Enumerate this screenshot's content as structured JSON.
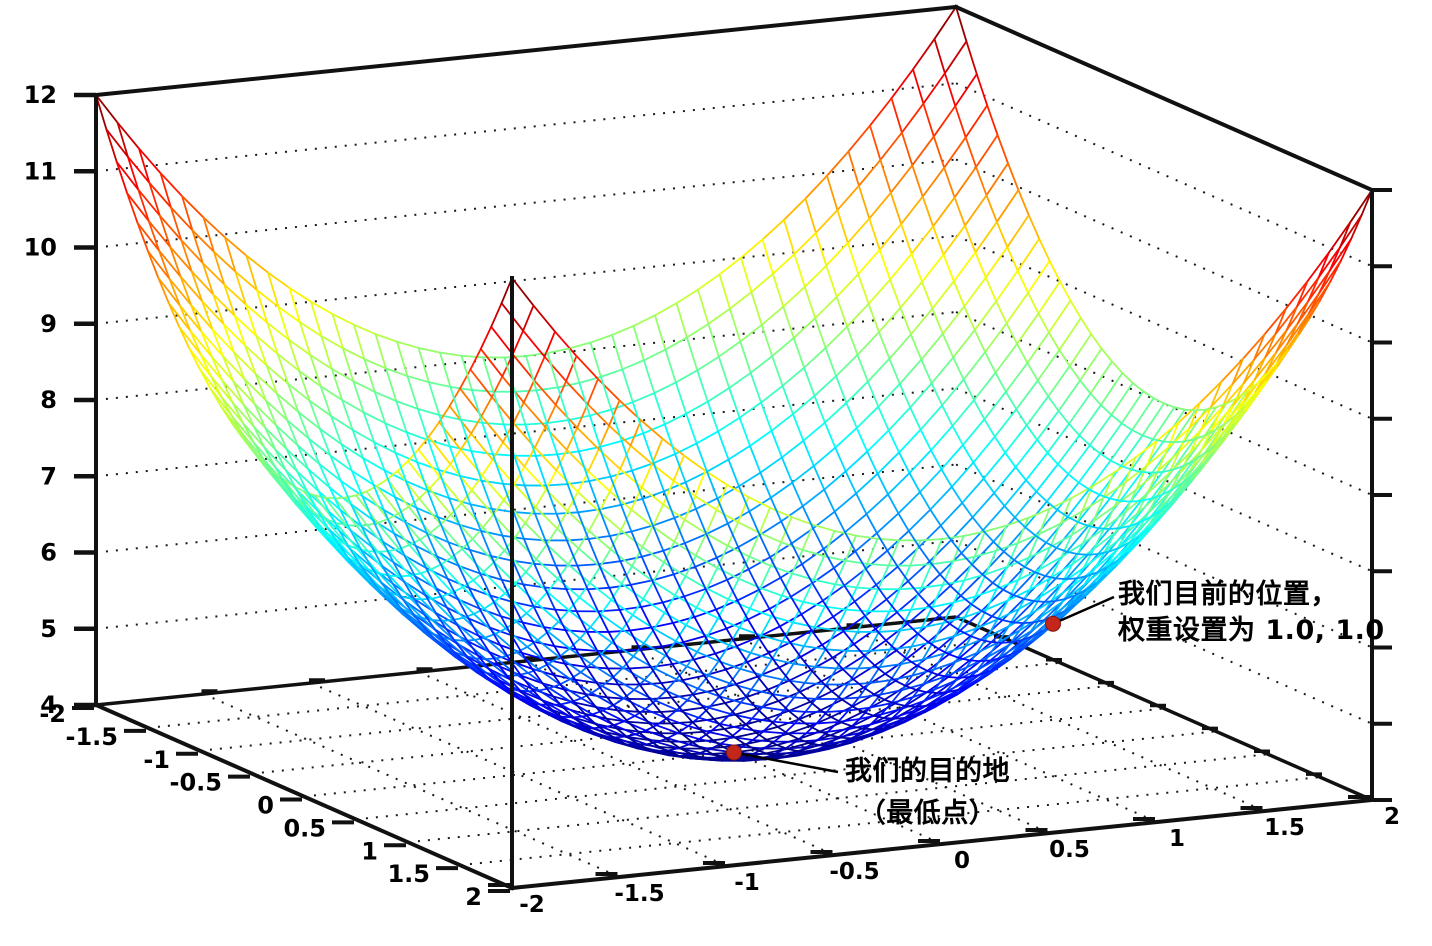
{
  "chart_data": {
    "type": "surface",
    "title": "",
    "function": "z = 4 + x^2 + y^2",
    "x_range": [
      -2,
      2
    ],
    "y_range": [
      -2,
      2
    ],
    "z_range": [
      4,
      12
    ],
    "mesh_step": 0.1,
    "colormap": "jet",
    "wall_grid": "dotted z gridlines on back walls",
    "floor_grid": "dotted x/y gridlines every 0.5",
    "axes": {
      "x": {
        "tick_values": [
          -2,
          -1.5,
          -1,
          -0.5,
          0,
          0.5,
          1,
          1.5,
          2
        ],
        "tick_labels": [
          "-2",
          "-1.5",
          "-1",
          "-0.5",
          "0",
          "0.5",
          "1",
          "1.5",
          "2"
        ]
      },
      "y": {
        "tick_values": [
          -2,
          -1.5,
          -1,
          -0.5,
          0,
          0.5,
          1,
          1.5,
          2
        ],
        "tick_labels": [
          "-2",
          "-1.5",
          "-1",
          "-0.5",
          "0",
          "0.5",
          "1",
          "1.5",
          "2"
        ]
      },
      "z": {
        "tick_values": [
          4,
          5,
          6,
          7,
          8,
          9,
          10,
          11,
          12
        ],
        "tick_labels": [
          "4",
          "5",
          "6",
          "7",
          "8",
          "9",
          "10",
          "11",
          "12"
        ]
      }
    },
    "markers": [
      {
        "x": 1.0,
        "y": 1.0,
        "z": 6.0,
        "color": "#c3271c",
        "label_lines": [
          "我们目前的位置，",
          "权重设置为 1.0, 1.0"
        ]
      },
      {
        "x": 0.0,
        "y": 0.0,
        "z": 4.0,
        "color": "#c3271c",
        "label_lines": [
          "我们的目的地",
          "（最低点）"
        ]
      }
    ],
    "annotation_color": "#000000",
    "axis_color": "#111111",
    "grid_dot_color": "#1a1a1a"
  }
}
